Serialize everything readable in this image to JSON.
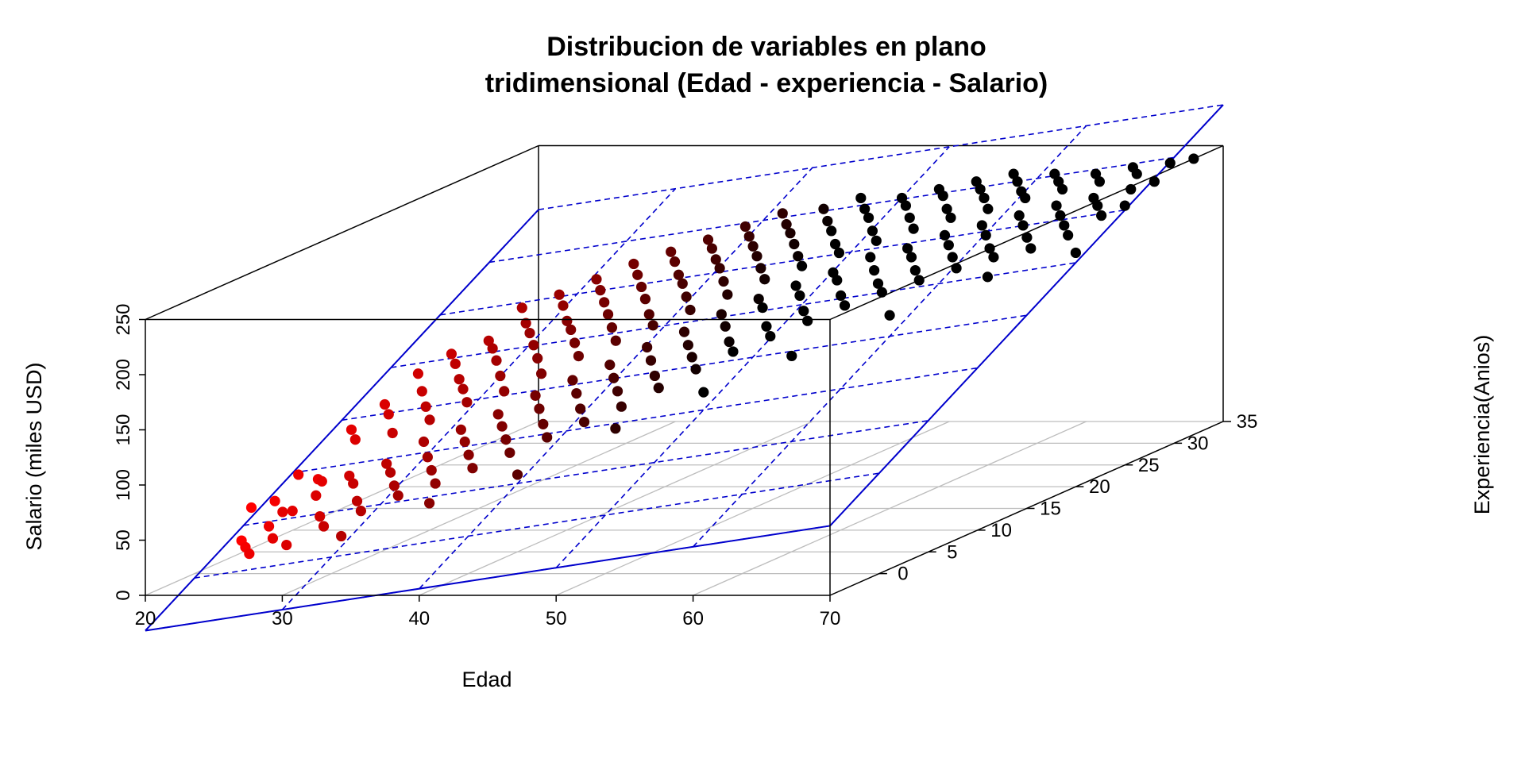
{
  "chart_data": {
    "type": "scatter3d",
    "title_line1": "Distribucion de variables en plano",
    "title_line2": "tridimensional (Edad - experiencia - Salario)",
    "xlabel": "Edad",
    "ylabel": "Experiencia(Anios)",
    "zlabel": "Salario (miles USD)",
    "xlim": [
      20,
      70
    ],
    "ylim": [
      -5,
      35
    ],
    "zlim": [
      0,
      250
    ],
    "x_ticks": [
      "20",
      "30",
      "40",
      "50",
      "60",
      "70"
    ],
    "y_ticks": [
      "0",
      "5",
      "10",
      "15",
      "20",
      "25",
      "30",
      "35"
    ],
    "z_ticks": [
      "0",
      "50",
      "100",
      "150",
      "200",
      "250"
    ],
    "grid": true,
    "color_scale": {
      "low": "#ff0000",
      "high": "#000000",
      "by": "Edad"
    },
    "regression_plane": {
      "color": "#0000cc",
      "line_style": "dashed",
      "coefficients": {
        "intercept": -42,
        "edad": 1.9,
        "experiencia": 5.6
      }
    },
    "points": [
      [
        22,
        2,
        22
      ],
      [
        22,
        3,
        48
      ],
      [
        23,
        1,
        20
      ],
      [
        23,
        4,
        50
      ],
      [
        24,
        2,
        35
      ],
      [
        24,
        5,
        70
      ],
      [
        24,
        7,
        58
      ],
      [
        24,
        0,
        18
      ],
      [
        25,
        1,
        28
      ],
      [
        25,
        3,
        45
      ],
      [
        25,
        6,
        60
      ],
      [
        25,
        9,
        95
      ],
      [
        25,
        2,
        48
      ],
      [
        26,
        4,
        55
      ],
      [
        26,
        8,
        90
      ],
      [
        26,
        11,
        110
      ],
      [
        26,
        1,
        22
      ],
      [
        27,
        3,
        40
      ],
      [
        27,
        6,
        65
      ],
      [
        27,
        10,
        105
      ],
      [
        27,
        13,
        130
      ],
      [
        28,
        2,
        35
      ],
      [
        28,
        5,
        62
      ],
      [
        28,
        9,
        92
      ],
      [
        28,
        12,
        118
      ],
      [
        28,
        15,
        140
      ],
      [
        29,
        4,
        50
      ],
      [
        29,
        7,
        72
      ],
      [
        29,
        11,
        108
      ],
      [
        29,
        14,
        135
      ],
      [
        30,
        3,
        45
      ],
      [
        30,
        6,
        68
      ],
      [
        30,
        10,
        100
      ],
      [
        30,
        13,
        125
      ],
      [
        30,
        16,
        148
      ],
      [
        30,
        1,
        30
      ],
      [
        31,
        5,
        60
      ],
      [
        31,
        8,
        88
      ],
      [
        31,
        12,
        120
      ],
      [
        31,
        15,
        145
      ],
      [
        31,
        18,
        170
      ],
      [
        32,
        4,
        55
      ],
      [
        32,
        7,
        78
      ],
      [
        32,
        11,
        112
      ],
      [
        32,
        14,
        138
      ],
      [
        32,
        17,
        160
      ],
      [
        33,
        6,
        70
      ],
      [
        33,
        9,
        95
      ],
      [
        33,
        13,
        128
      ],
      [
        33,
        16,
        155
      ],
      [
        33,
        19,
        178
      ],
      [
        34,
        5,
        62
      ],
      [
        34,
        8,
        88
      ],
      [
        34,
        12,
        118
      ],
      [
        34,
        15,
        148
      ],
      [
        34,
        18,
        172
      ],
      [
        35,
        7,
        80
      ],
      [
        35,
        10,
        105
      ],
      [
        35,
        14,
        140
      ],
      [
        35,
        17,
        162
      ],
      [
        35,
        20,
        188
      ],
      [
        35,
        3,
        52
      ],
      [
        36,
        6,
        72
      ],
      [
        36,
        9,
        98
      ],
      [
        36,
        13,
        130
      ],
      [
        36,
        16,
        158
      ],
      [
        36,
        19,
        182
      ],
      [
        37,
        8,
        90
      ],
      [
        37,
        11,
        118
      ],
      [
        37,
        15,
        150
      ],
      [
        37,
        18,
        175
      ],
      [
        37,
        21,
        198
      ],
      [
        38,
        7,
        82
      ],
      [
        38,
        10,
        110
      ],
      [
        38,
        14,
        142
      ],
      [
        38,
        17,
        168
      ],
      [
        38,
        20,
        192
      ],
      [
        39,
        9,
        100
      ],
      [
        39,
        12,
        128
      ],
      [
        39,
        16,
        160
      ],
      [
        39,
        19,
        185
      ],
      [
        39,
        22,
        205
      ],
      [
        40,
        8,
        92
      ],
      [
        40,
        11,
        120
      ],
      [
        40,
        15,
        152
      ],
      [
        40,
        18,
        178
      ],
      [
        40,
        21,
        200
      ],
      [
        40,
        5,
        70
      ],
      [
        41,
        10,
        110
      ],
      [
        41,
        13,
        138
      ],
      [
        41,
        17,
        168
      ],
      [
        41,
        20,
        192
      ],
      [
        41,
        23,
        212
      ],
      [
        42,
        9,
        102
      ],
      [
        42,
        12,
        130
      ],
      [
        42,
        16,
        162
      ],
      [
        42,
        19,
        188
      ],
      [
        42,
        22,
        208
      ],
      [
        43,
        11,
        122
      ],
      [
        43,
        14,
        150
      ],
      [
        43,
        18,
        180
      ],
      [
        43,
        21,
        202
      ],
      [
        43,
        24,
        220
      ],
      [
        44,
        10,
        112
      ],
      [
        44,
        13,
        142
      ],
      [
        44,
        17,
        172
      ],
      [
        44,
        20,
        198
      ],
      [
        44,
        23,
        215
      ],
      [
        45,
        12,
        132
      ],
      [
        45,
        15,
        160
      ],
      [
        45,
        19,
        190
      ],
      [
        45,
        22,
        210
      ],
      [
        45,
        25,
        228
      ],
      [
        45,
        8,
        100
      ],
      [
        46,
        11,
        125
      ],
      [
        46,
        14,
        152
      ],
      [
        46,
        18,
        182
      ],
      [
        46,
        21,
        205
      ],
      [
        46,
        24,
        222
      ],
      [
        47,
        13,
        145
      ],
      [
        47,
        16,
        172
      ],
      [
        47,
        20,
        198
      ],
      [
        47,
        23,
        218
      ],
      [
        48,
        12,
        138
      ],
      [
        48,
        15,
        165
      ],
      [
        48,
        19,
        192
      ],
      [
        48,
        22,
        212
      ],
      [
        48,
        25,
        232
      ],
      [
        49,
        14,
        155
      ],
      [
        49,
        17,
        182
      ],
      [
        49,
        21,
        205
      ],
      [
        49,
        24,
        225
      ],
      [
        50,
        13,
        150
      ],
      [
        50,
        16,
        178
      ],
      [
        50,
        20,
        200
      ],
      [
        50,
        23,
        220
      ],
      [
        50,
        26,
        238
      ],
      [
        50,
        10,
        125
      ],
      [
        51,
        15,
        165
      ],
      [
        51,
        18,
        190
      ],
      [
        51,
        22,
        212
      ],
      [
        51,
        25,
        232
      ],
      [
        52,
        14,
        160
      ],
      [
        52,
        17,
        185
      ],
      [
        52,
        21,
        208
      ],
      [
        52,
        24,
        228
      ],
      [
        53,
        16,
        175
      ],
      [
        53,
        19,
        198
      ],
      [
        53,
        23,
        220
      ],
      [
        53,
        26,
        238
      ],
      [
        54,
        15,
        170
      ],
      [
        54,
        18,
        195
      ],
      [
        54,
        22,
        215
      ],
      [
        54,
        25,
        235
      ],
      [
        55,
        17,
        185
      ],
      [
        55,
        20,
        208
      ],
      [
        55,
        24,
        228
      ],
      [
        55,
        27,
        242
      ],
      [
        55,
        12,
        150
      ],
      [
        56,
        16,
        180
      ],
      [
        56,
        19,
        200
      ],
      [
        56,
        23,
        222
      ],
      [
        56,
        26,
        240
      ],
      [
        57,
        18,
        192
      ],
      [
        57,
        21,
        212
      ],
      [
        57,
        25,
        232
      ],
      [
        57,
        28,
        245
      ],
      [
        58,
        17,
        188
      ],
      [
        58,
        20,
        208
      ],
      [
        58,
        24,
        228
      ],
      [
        58,
        27,
        242
      ],
      [
        59,
        19,
        200
      ],
      [
        59,
        22,
        220
      ],
      [
        59,
        26,
        238
      ],
      [
        59,
        29,
        248
      ],
      [
        60,
        18,
        195
      ],
      [
        60,
        21,
        215
      ],
      [
        60,
        25,
        232
      ],
      [
        60,
        28,
        245
      ],
      [
        60,
        15,
        175
      ],
      [
        61,
        20,
        208
      ],
      [
        61,
        23,
        225
      ],
      [
        61,
        27,
        240
      ],
      [
        62,
        19,
        202
      ],
      [
        62,
        22,
        220
      ],
      [
        62,
        26,
        238
      ],
      [
        62,
        29,
        248
      ],
      [
        63,
        21,
        212
      ],
      [
        63,
        24,
        230
      ],
      [
        63,
        28,
        245
      ],
      [
        64,
        20,
        208
      ],
      [
        64,
        23,
        225
      ],
      [
        64,
        27,
        242
      ],
      [
        65,
        22,
        218
      ],
      [
        65,
        25,
        235
      ],
      [
        65,
        29,
        248
      ],
      [
        65,
        18,
        198
      ],
      [
        66,
        21,
        212
      ],
      [
        66,
        24,
        230
      ],
      [
        66,
        28,
        245
      ],
      [
        67,
        23,
        225
      ],
      [
        67,
        26,
        238
      ],
      [
        67,
        30,
        250
      ],
      [
        68,
        22,
        220
      ],
      [
        68,
        25,
        235
      ],
      [
        68,
        29,
        248
      ],
      [
        69,
        24,
        230
      ],
      [
        69,
        27,
        242
      ],
      [
        69,
        31,
        250
      ],
      [
        70,
        25,
        235
      ],
      [
        70,
        28,
        245
      ],
      [
        70,
        32,
        250
      ],
      [
        70,
        20,
        212
      ]
    ]
  }
}
